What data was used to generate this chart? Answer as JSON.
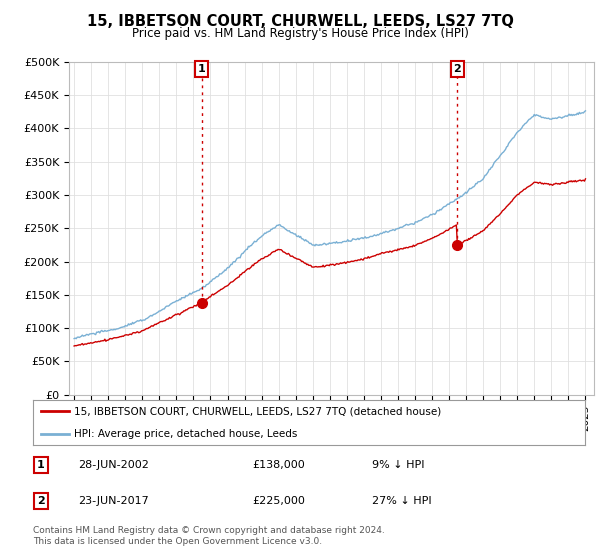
{
  "title": "15, IBBETSON COURT, CHURWELL, LEEDS, LS27 7TQ",
  "subtitle": "Price paid vs. HM Land Registry's House Price Index (HPI)",
  "ylabel_ticks": [
    "£0",
    "£50K",
    "£100K",
    "£150K",
    "£200K",
    "£250K",
    "£300K",
    "£350K",
    "£400K",
    "£450K",
    "£500K"
  ],
  "ytick_values": [
    0,
    50000,
    100000,
    150000,
    200000,
    250000,
    300000,
    350000,
    400000,
    450000,
    500000
  ],
  "xlim_start": 1994.7,
  "xlim_end": 2025.5,
  "ylim": [
    0,
    500000
  ],
  "hpi_color": "#7ab0d4",
  "price_color": "#cc0000",
  "sale1_year": 2002.49,
  "sale1_price": 138000,
  "sale2_year": 2017.48,
  "sale2_price": 225000,
  "legend_label1": "15, IBBETSON COURT, CHURWELL, LEEDS, LS27 7TQ (detached house)",
  "legend_label2": "HPI: Average price, detached house, Leeds",
  "footnote": "Contains HM Land Registry data © Crown copyright and database right 2024.\nThis data is licensed under the Open Government Licence v3.0.",
  "background_color": "#ffffff",
  "grid_color": "#e0e0e0"
}
